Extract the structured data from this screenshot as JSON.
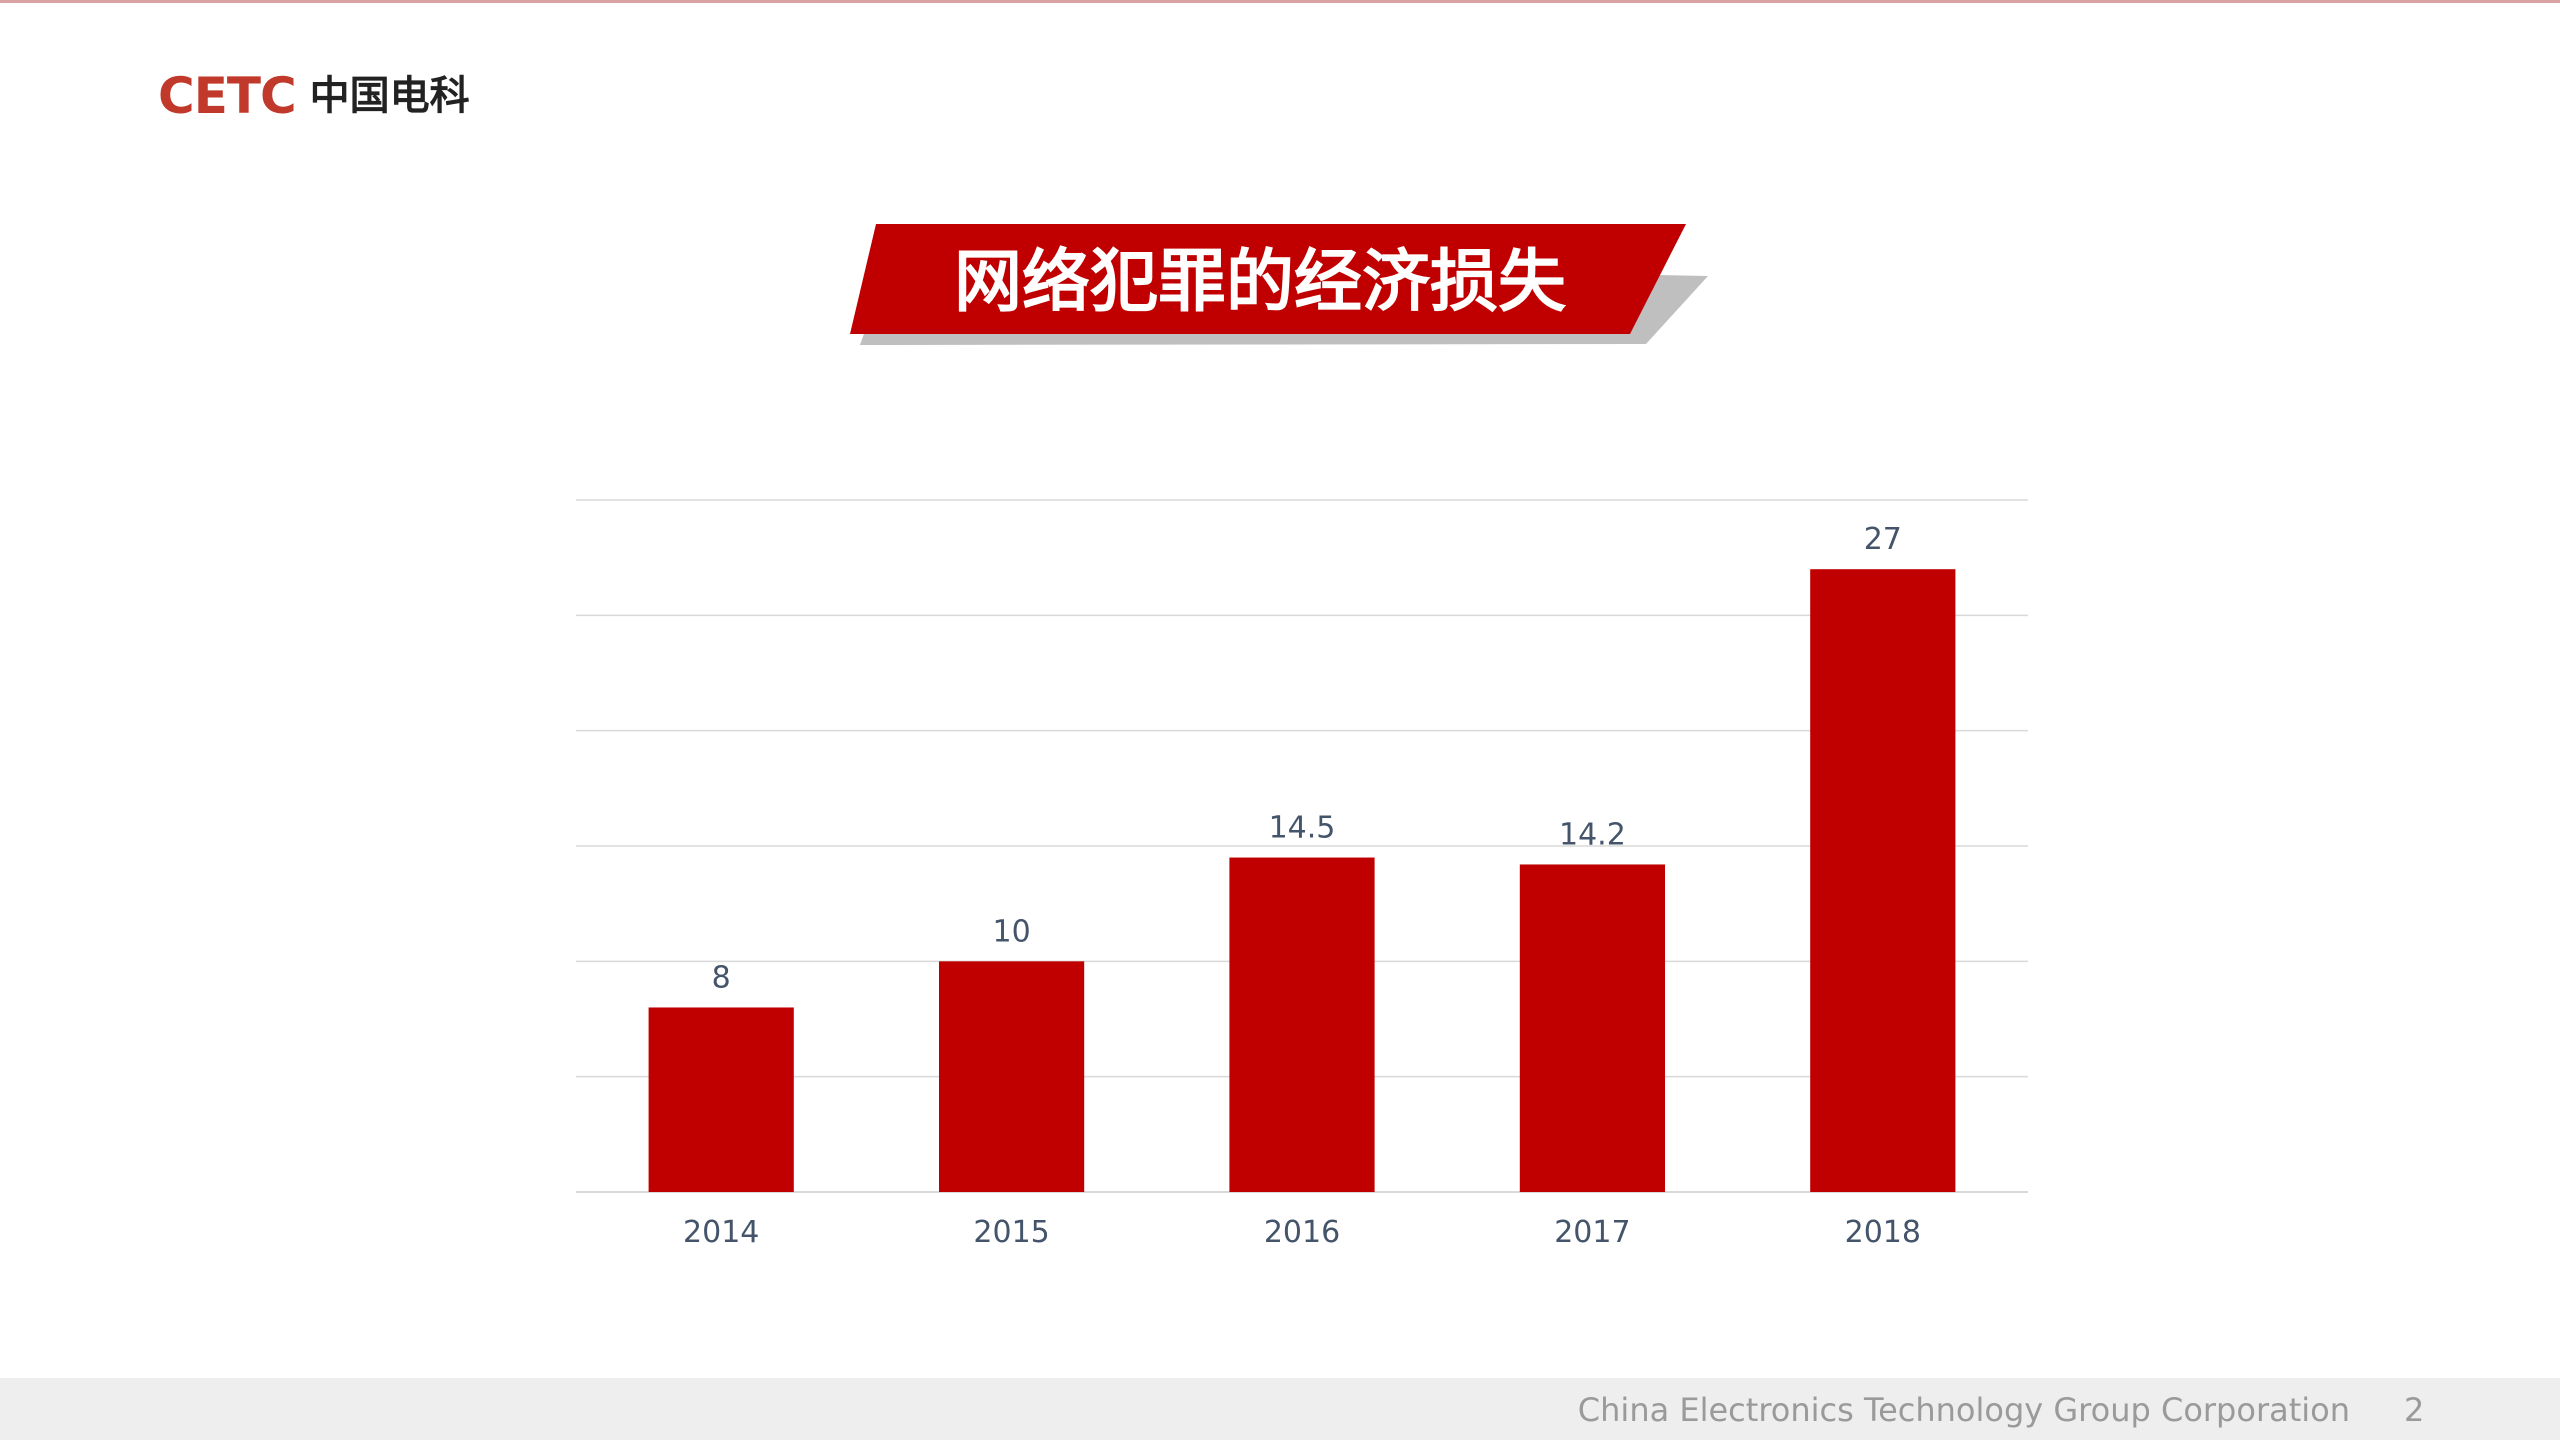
{
  "logo": {
    "mark": "CETC",
    "name_cn": "中国电科"
  },
  "title": "网络犯罪的经济损失",
  "footer": {
    "org": "China Electronics Technology Group Corporation",
    "page": "2"
  },
  "colors": {
    "accent": "#c00000",
    "axis_label": "#44546a",
    "grid": "#d9d9d9"
  },
  "chart_data": {
    "type": "bar",
    "categories": [
      "2014",
      "2015",
      "2016",
      "2017",
      "2018"
    ],
    "values": [
      8,
      10,
      14.5,
      14.2,
      27
    ],
    "data_labels": [
      "8",
      "10",
      "14.5",
      "14.2",
      "27"
    ],
    "ylim": [
      0,
      30
    ],
    "gridline_step": 5,
    "grid": true,
    "legend": "none",
    "title": "",
    "xlabel": "",
    "ylabel": ""
  }
}
